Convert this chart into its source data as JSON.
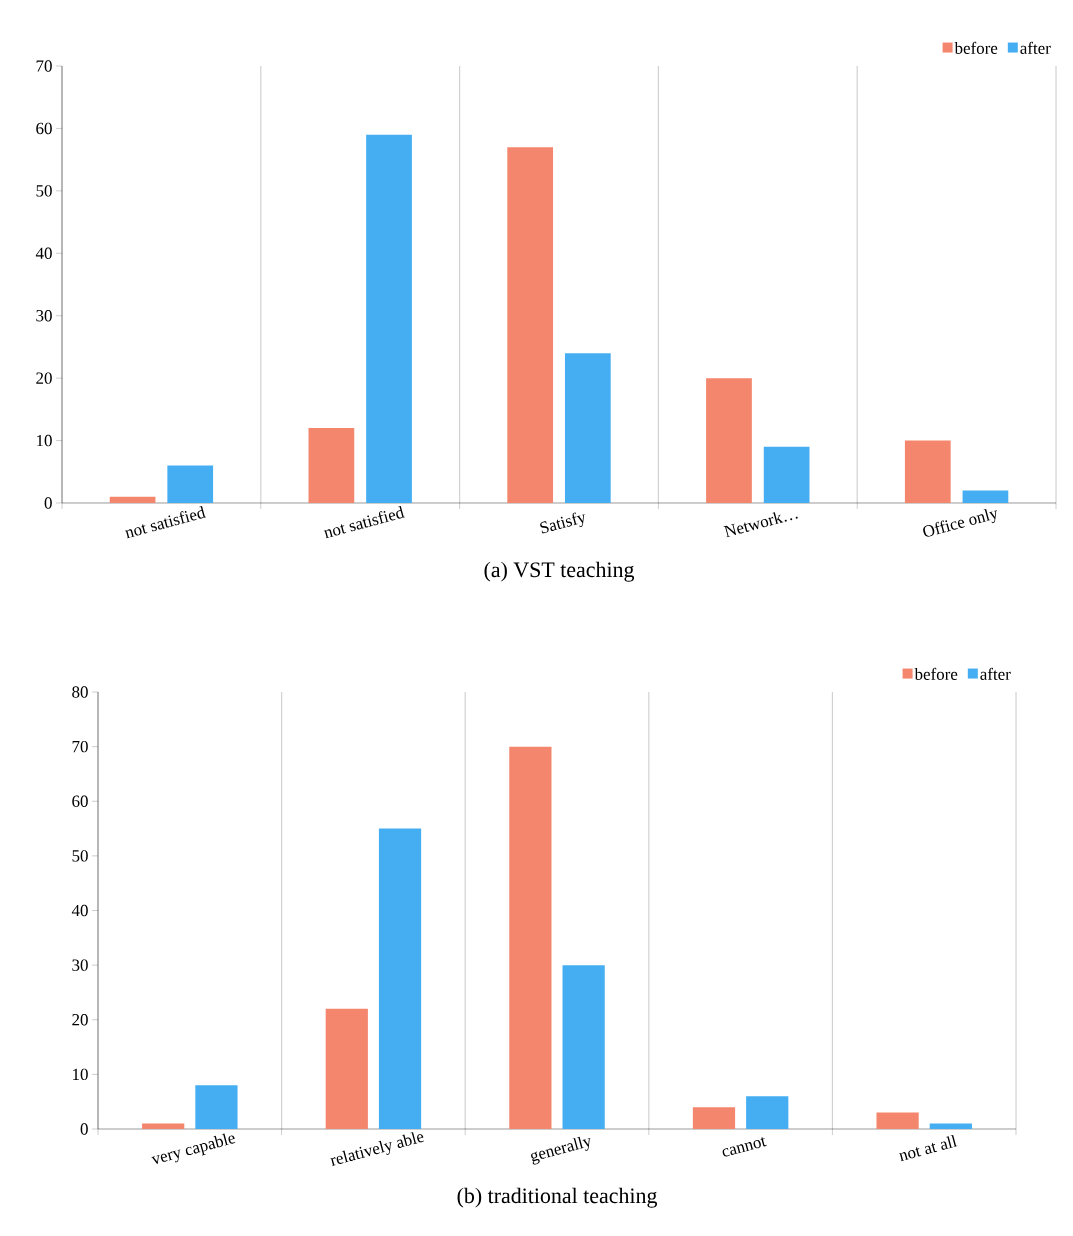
{
  "chart_data": [
    {
      "type": "bar",
      "title": "(a) VST teaching",
      "categories": [
        "not satisfied",
        "not satisfied",
        "Satisfy",
        "Network…",
        "Office only"
      ],
      "series": [
        {
          "name": "before",
          "color": "#f3866c",
          "values": [
            1,
            12,
            57,
            20,
            10
          ]
        },
        {
          "name": "after",
          "color": "#45aef2",
          "values": [
            6,
            59,
            24,
            9,
            2
          ]
        }
      ],
      "ylim": [
        0,
        70
      ],
      "yticks": [
        0,
        10,
        20,
        30,
        40,
        50,
        60,
        70
      ],
      "grid": "x",
      "legend": "top right"
    },
    {
      "type": "bar",
      "title": "(b) traditional teaching",
      "categories": [
        "very capable",
        "relatively able",
        "generally",
        "cannot",
        "not at all"
      ],
      "series": [
        {
          "name": "before",
          "color": "#f3866c",
          "values": [
            1,
            22,
            70,
            4,
            3
          ]
        },
        {
          "name": "after",
          "color": "#45aef2",
          "values": [
            8,
            55,
            30,
            6,
            1
          ]
        }
      ],
      "ylim": [
        0,
        80
      ],
      "yticks": [
        0,
        10,
        20,
        30,
        40,
        50,
        60,
        70,
        80
      ],
      "grid": "x",
      "legend": "top right"
    }
  ]
}
